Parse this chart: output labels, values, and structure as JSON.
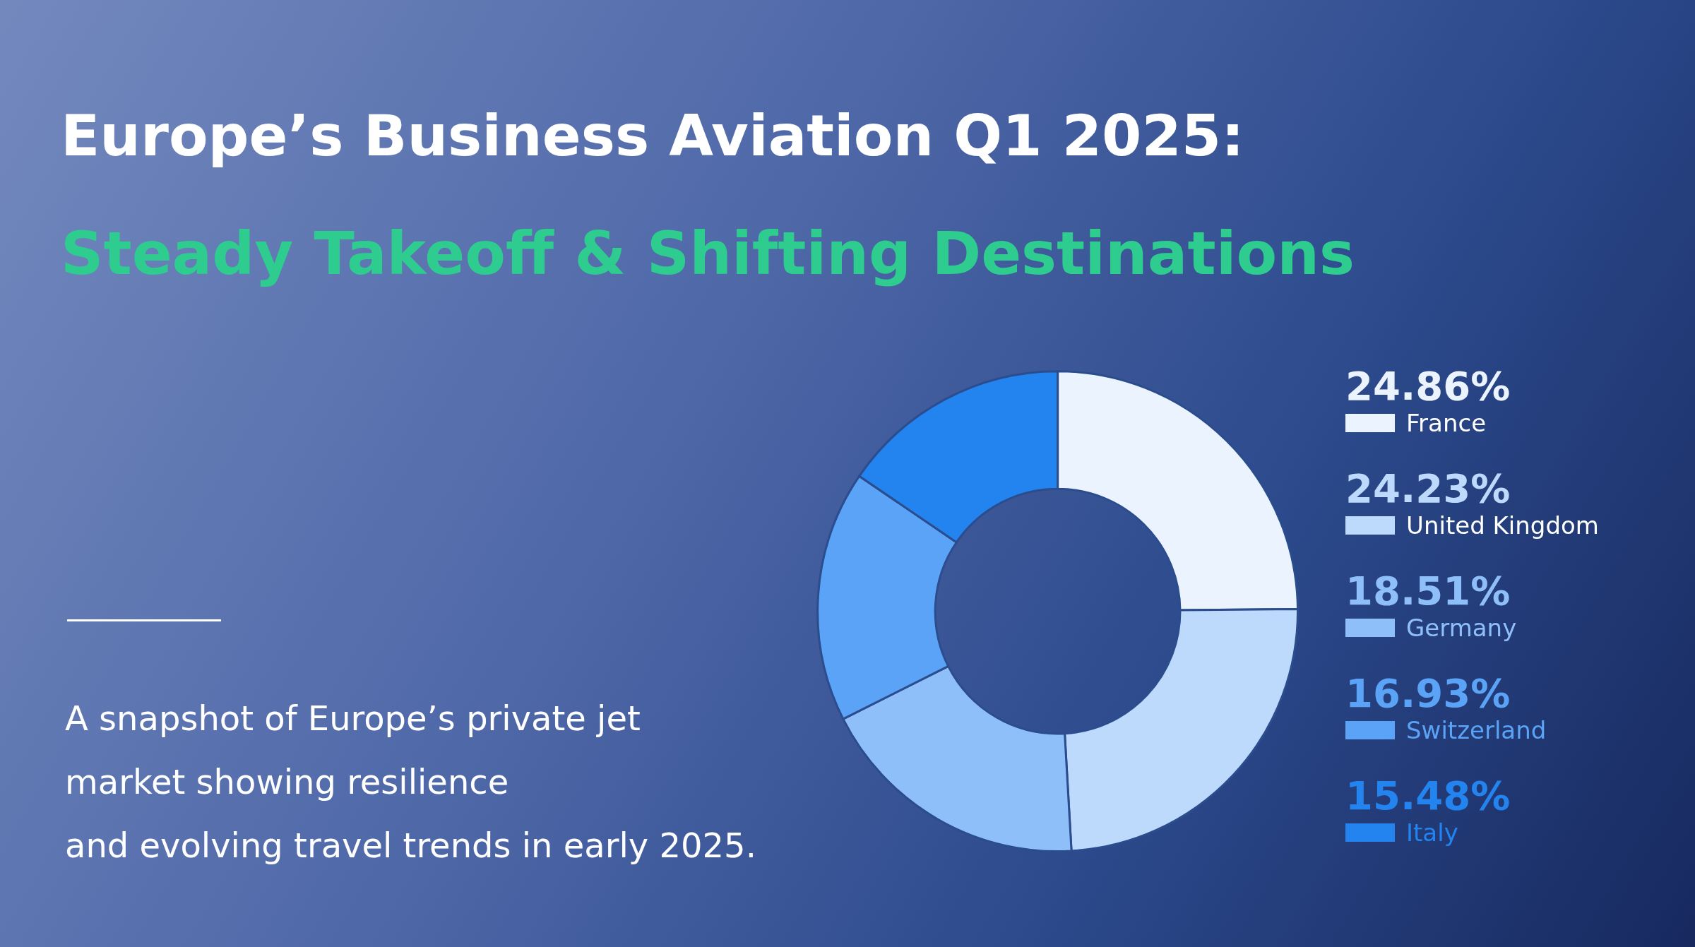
{
  "chart_data": {
    "type": "donut",
    "title": "Europe’s Business Aviation Q1 2025:",
    "subtitle": "Steady Takeoff & Shifting Destinations",
    "annotations": [
      "A snapshot of Europe’s private jet\nmarket showing resilience\nand evolving travel trends in early 2025."
    ],
    "categories": [
      "France",
      "United Kingdom",
      "Germany",
      "Switzerland",
      "Italy"
    ],
    "values": [
      24.86,
      24.23,
      18.51,
      16.93,
      15.48
    ],
    "value_labels": [
      "24.86%",
      "24.23%",
      "18.51%",
      "16.93%",
      "15.48%"
    ],
    "colors": [
      "#eaf3fe",
      "#bddafc",
      "#8fbff9",
      "#5aa3f6",
      "#2384f0"
    ],
    "legend": "right"
  }
}
